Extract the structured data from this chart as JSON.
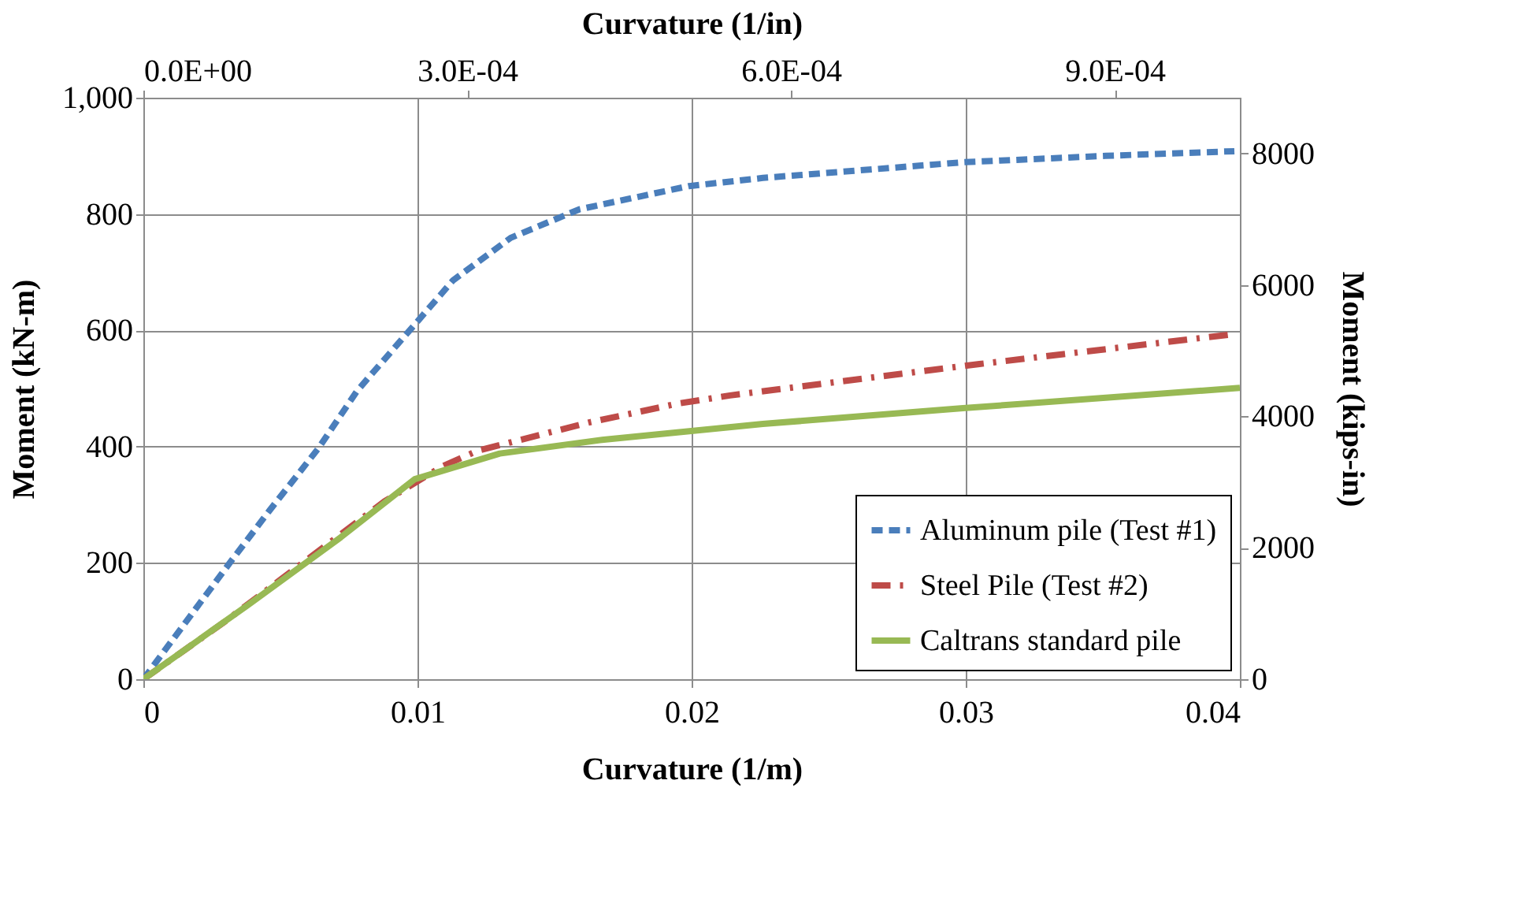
{
  "chart_data": {
    "type": "line",
    "xlabel": "Curvature (1/m)",
    "ylabel": "Moment (kN-m)",
    "y2label": "Moment (kips-in)",
    "x2label": "Curvature (1/in)",
    "xlim": [
      0,
      0.04
    ],
    "xticks": [
      0,
      0.01,
      0.02,
      0.03,
      0.04
    ],
    "ylim": [
      0,
      1000
    ],
    "yticks": [
      0,
      200,
      400,
      600,
      800,
      {
        "value": 1000,
        "label": "1,000"
      }
    ],
    "y2lim": [
      0,
      8851
    ],
    "y2ticks": [
      0,
      2000,
      4000,
      6000,
      8000
    ],
    "x2lim": [
      0,
      0.001016
    ],
    "x2ticks": [
      {
        "value": 0,
        "label": "0.0E+00"
      },
      {
        "value": 0.0003,
        "label": "3.0E-04"
      },
      {
        "value": 0.0006,
        "label": "6.0E-04"
      },
      {
        "value": 0.0009,
        "label": "9.0E-04"
      }
    ],
    "grid": true,
    "legend": "bottom right",
    "marker": "none",
    "series": [
      {
        "name": "Aluminum pile (Test #1)",
        "color": "#4a7ebb",
        "line_style": "dashed",
        "x": [
          0,
          0.0032,
          0.0046,
          0.0064,
          0.0078,
          0.0099,
          0.0113,
          0.0134,
          0.0159,
          0.0199,
          0.0226,
          0.0299,
          0.0351,
          0.0398
        ],
        "values": [
          0,
          203,
          290,
          398,
          496,
          610,
          686,
          759,
          808,
          848,
          862,
          889,
          900,
          908
        ]
      },
      {
        "name": "Steel Pile (Test #2)",
        "color": "#be4b48",
        "line_style": "dashdot",
        "x": [
          0,
          0.003,
          0.0059,
          0.0088,
          0.0109,
          0.0122,
          0.0163,
          0.0195,
          0.0214,
          0.0305,
          0.0397
        ],
        "values": [
          0,
          100,
          203,
          306,
          366,
          393,
          442,
          474,
          488,
          542,
          593
        ]
      },
      {
        "name": "Caltrans standard pile",
        "color": "#98b954",
        "line_style": "solid",
        "x": [
          0,
          0.0038,
          0.0072,
          0.0099,
          0.013,
          0.0168,
          0.0226,
          0.0299,
          0.04
        ],
        "values": [
          0,
          127,
          244,
          344,
          388,
          412,
          439,
          466,
          501
        ]
      }
    ]
  }
}
